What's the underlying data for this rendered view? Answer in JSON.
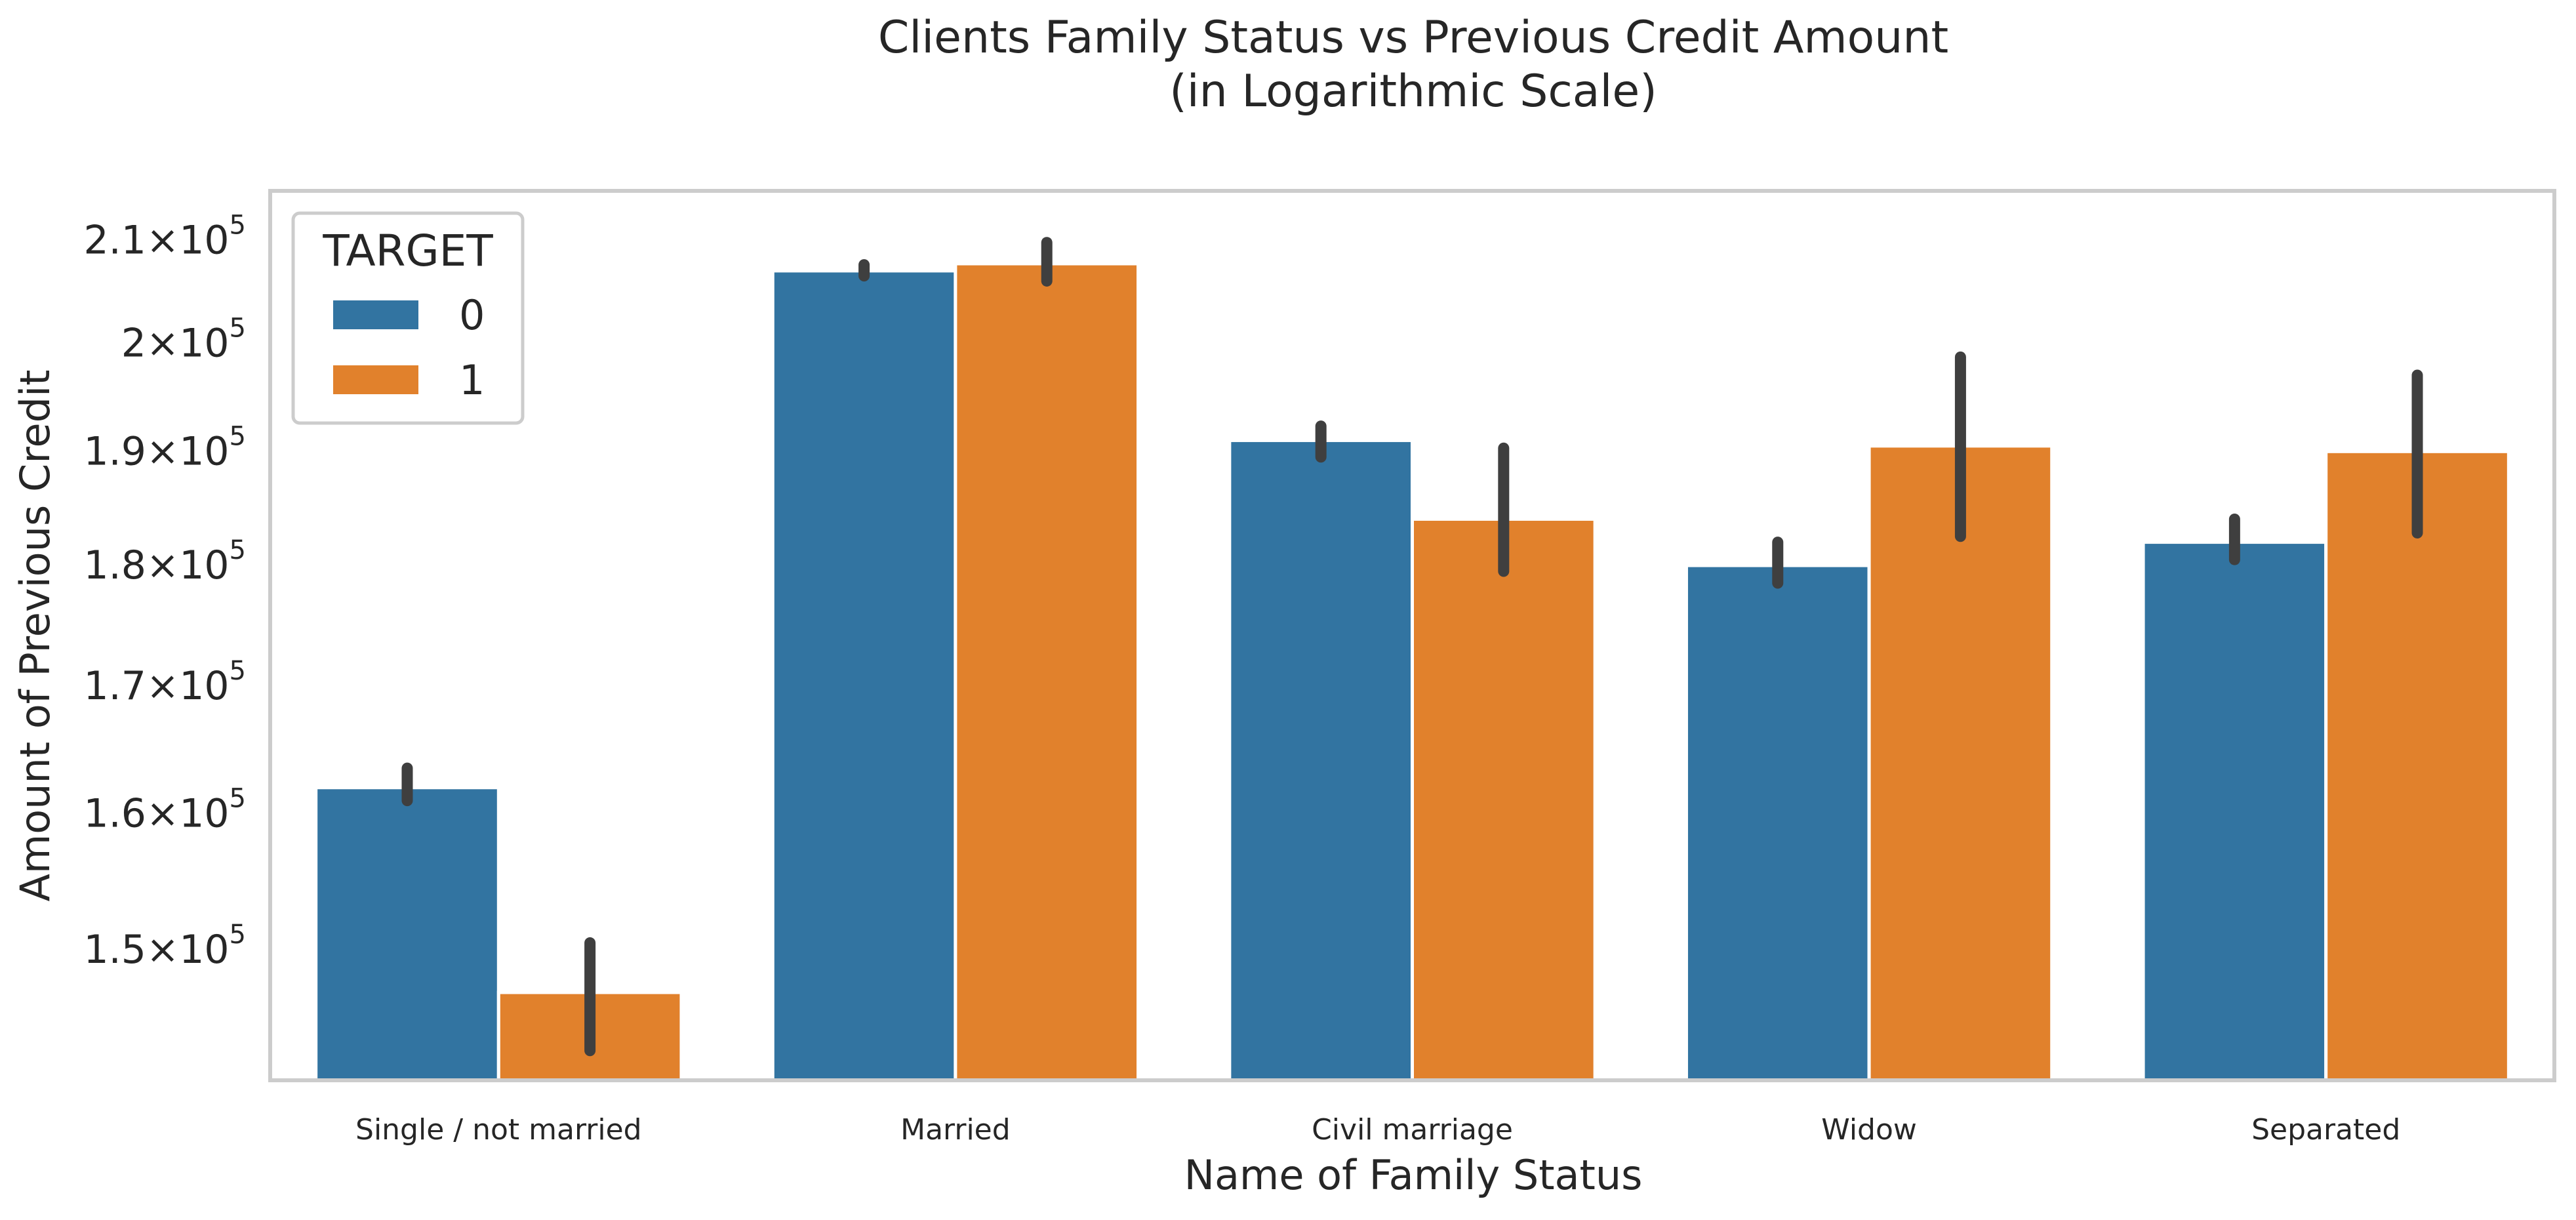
{
  "chart_data": {
    "type": "bar",
    "title": "Clients Family Status vs Previous Credit Amount",
    "subtitle": "(in Logarithmic Scale)",
    "xlabel": "Name of Family Status",
    "ylabel": "Amount of Previous Credit",
    "yscale": "log",
    "ylim": [
      141000,
      215000
    ],
    "yticks": [
      {
        "value": 150000,
        "mantissa": "1.5",
        "times": "×",
        "base": "10",
        "exp": "5"
      },
      {
        "value": 160000,
        "mantissa": "1.6",
        "times": "×",
        "base": "10",
        "exp": "5"
      },
      {
        "value": 170000,
        "mantissa": "1.7",
        "times": "×",
        "base": "10",
        "exp": "5"
      },
      {
        "value": 180000,
        "mantissa": "1.8",
        "times": "×",
        "base": "10",
        "exp": "5"
      },
      {
        "value": 190000,
        "mantissa": "1.9",
        "times": "×",
        "base": "10",
        "exp": "5"
      },
      {
        "value": 200000,
        "mantissa": "2",
        "times": "×",
        "base": "10",
        "exp": "5"
      },
      {
        "value": 210000,
        "mantissa": "2.1",
        "times": "×",
        "base": "10",
        "exp": "5"
      }
    ],
    "categories": [
      "Single / not married",
      "Married",
      "Civil marriage",
      "Widow",
      "Separated"
    ],
    "legend": {
      "title": "TARGET",
      "position": "top-left"
    },
    "grid": false,
    "series": [
      {
        "name": "0",
        "color": "#3274a1",
        "values": [
          162000,
          207000,
          191000,
          180000,
          182000
        ],
        "ci_low": [
          161000,
          206500,
          189500,
          178500,
          180500
        ],
        "ci_high": [
          163500,
          207600,
          192300,
          182000,
          184000
        ]
      },
      {
        "name": "1",
        "color": "#e1812c",
        "values": [
          147000,
          207700,
          184000,
          190500,
          190000
        ],
        "ci_low": [
          143000,
          206000,
          179500,
          182500,
          182800
        ],
        "ci_high": [
          150500,
          209800,
          190300,
          198700,
          197000
        ]
      }
    ]
  }
}
